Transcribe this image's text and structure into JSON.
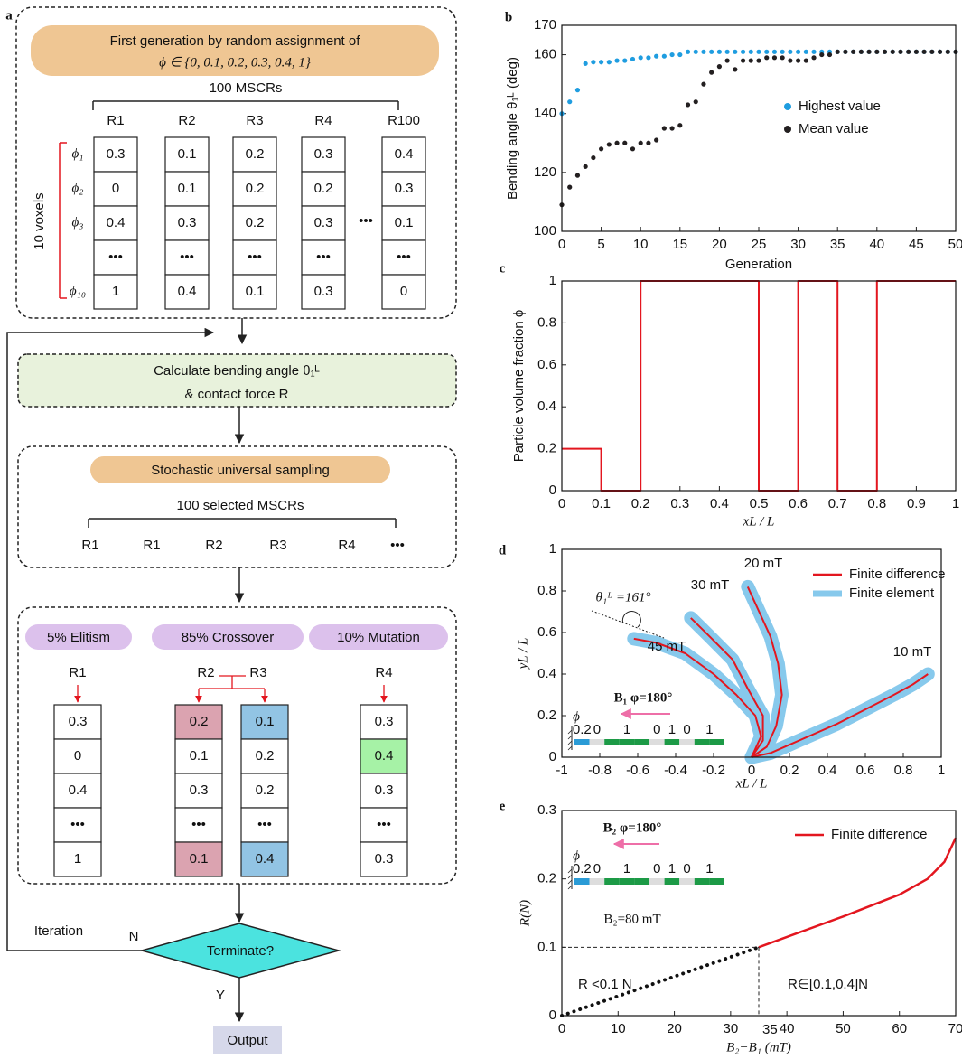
{
  "panel_labels": [
    "a",
    "b",
    "c",
    "d",
    "e"
  ],
  "flowchart": {
    "init": {
      "title": "First generation by random assignment of",
      "set": "ϕ ∈ {0, 0.1, 0.2, 0.3, 0.4, 1}",
      "group": "100 MSCRs",
      "columns": [
        "R1",
        "R2",
        "R3",
        "R4",
        "R100"
      ],
      "row_labels": [
        "ϕ₁",
        "ϕ₂",
        "ϕ₃",
        "ϕ₁₀"
      ],
      "rows_label": "10 voxels",
      "ellipsis": "•••",
      "cells": [
        [
          "0.3",
          "0",
          "0.4",
          "•••",
          "1"
        ],
        [
          "0.1",
          "0.1",
          "0.3",
          "•••",
          "0.4"
        ],
        [
          "0.2",
          "0.2",
          "0.2",
          "•••",
          "0.1"
        ],
        [
          "0.3",
          "0.2",
          "0.3",
          "•••",
          "0.3"
        ],
        [
          "0.4",
          "0.3",
          "0.1",
          "•••",
          "0"
        ]
      ]
    },
    "evaluate": {
      "line1": "Calculate  bending angle θ₁ᴸ",
      "line2": "& contact force R"
    },
    "selection": {
      "title": "Stochastic universal sampling",
      "group": "100  selected MSCRs",
      "items": [
        "R1",
        "R1",
        "R2",
        "R3",
        "R4",
        "•••"
      ]
    },
    "operators": {
      "labels": [
        "5% Elitism",
        "85% Crossover",
        "10% Mutation"
      ],
      "columns": [
        {
          "name": "R1",
          "cells": [
            "0.3",
            "0",
            "0.4",
            "•••",
            "1"
          ],
          "fills": [
            "#ffffff",
            "#ffffff",
            "#ffffff",
            "#ffffff",
            "#ffffff"
          ]
        },
        {
          "name": "R2",
          "cells": [
            "0.2",
            "0.1",
            "0.3",
            "•••",
            "0.1"
          ],
          "fills": [
            "#dba3b0",
            "#ffffff",
            "#ffffff",
            "#ffffff",
            "#dba3b0"
          ]
        },
        {
          "name": "R3",
          "cells": [
            "0.1",
            "0.2",
            "0.2",
            "•••",
            "0.4"
          ],
          "fills": [
            "#92c4e4",
            "#ffffff",
            "#ffffff",
            "#ffffff",
            "#92c4e4"
          ]
        },
        {
          "name": "R4",
          "cells": [
            "0.3",
            "0.4",
            "0.3",
            "•••",
            "0.3"
          ],
          "fills": [
            "#ffffff",
            "#a6f2a6",
            "#ffffff",
            "#ffffff",
            "#ffffff"
          ]
        }
      ]
    },
    "decision": "Terminate?",
    "loop": "Iteration",
    "no": "N",
    "yes": "Y",
    "output": "Output"
  },
  "chart_data": [
    {
      "type": "scatter",
      "ylabel": "Bending angle θ₁ᴸ (deg)",
      "xlabel": "Generation",
      "x": [
        0,
        1,
        2,
        3,
        4,
        5,
        6,
        7,
        8,
        9,
        10,
        11,
        12,
        13,
        14,
        15,
        16,
        17,
        18,
        19,
        20,
        21,
        22,
        23,
        24,
        25,
        26,
        27,
        28,
        29,
        30,
        31,
        32,
        33,
        34,
        35,
        36,
        37,
        38,
        39,
        40,
        41,
        42,
        43,
        44,
        45,
        46,
        47,
        48,
        49,
        50
      ],
      "xlim": [
        0,
        50
      ],
      "xticks": [
        0,
        5,
        10,
        15,
        20,
        25,
        30,
        35,
        40,
        45,
        50
      ],
      "ylim": [
        100,
        170
      ],
      "yticks": [
        100,
        120,
        140,
        160,
        170
      ],
      "series": [
        {
          "name": "Highest value",
          "color": "#1f9de0",
          "values": [
            140,
            144,
            148,
            157,
            157.5,
            157.5,
            157.5,
            158,
            158,
            158.5,
            159,
            159,
            159.5,
            159.5,
            160,
            160,
            161,
            161,
            161,
            161,
            161,
            161,
            161,
            161,
            161,
            161,
            161,
            161,
            161,
            161,
            161,
            161,
            161,
            161,
            161,
            161,
            161,
            161,
            161,
            161,
            161,
            161,
            161,
            161,
            161,
            161,
            161,
            161,
            161,
            161,
            161
          ]
        },
        {
          "name": "Mean value",
          "color": "#231f20",
          "values": [
            109,
            115,
            119,
            122,
            125,
            128,
            129.5,
            130,
            130,
            128,
            130,
            130,
            131,
            135,
            135,
            136,
            143,
            144,
            150,
            154,
            156,
            158,
            155,
            158,
            158,
            158,
            159,
            159,
            159,
            158,
            158,
            158,
            159,
            160,
            160,
            161,
            161,
            161,
            161,
            161,
            161,
            161,
            161,
            161,
            161,
            161,
            161,
            161,
            161,
            161,
            161
          ]
        }
      ]
    },
    {
      "type": "line",
      "ylabel": "Particle volume fraction ϕ",
      "xlabel": "xL / L",
      "xlim": [
        0,
        1
      ],
      "xticks": [
        0,
        0.1,
        0.2,
        0.3,
        0.4,
        0.5,
        0.6,
        0.7,
        0.8,
        0.9,
        1
      ],
      "ylim": [
        0,
        1
      ],
      "yticks": [
        0,
        0.2,
        0.4,
        0.6,
        0.8,
        1
      ],
      "x": [
        0,
        0.1,
        0.1,
        0.2,
        0.2,
        0.5,
        0.5,
        0.6,
        0.6,
        0.7,
        0.7,
        0.8,
        0.8,
        1
      ],
      "series": [
        {
          "color": "#e3161f",
          "values": [
            0.2,
            0.2,
            0,
            0,
            1,
            1,
            0,
            0,
            1,
            1,
            0,
            0,
            1,
            1
          ]
        }
      ]
    },
    {
      "type": "line",
      "ylabel": "yL / L",
      "xlabel": "xL / L",
      "xlim": [
        -1,
        1
      ],
      "xticks": [
        -1,
        -0.8,
        -0.6,
        -0.4,
        -0.2,
        0,
        0.2,
        0.4,
        0.6,
        0.8,
        1
      ],
      "ylim": [
        0,
        1
      ],
      "yticks": [
        0,
        0.2,
        0.4,
        0.6,
        0.8,
        1
      ],
      "series": [
        {
          "name": "Finite difference",
          "color": "#e3161f",
          "curves": [
            {
              "label": "10 mT",
              "x": [
                0,
                0.1,
                0.2,
                0.3,
                0.45,
                0.6,
                0.75,
                0.85,
                0.93
              ],
              "y": [
                0,
                0.02,
                0.06,
                0.1,
                0.16,
                0.23,
                0.3,
                0.35,
                0.4
              ]
            },
            {
              "label": "20 mT",
              "x": [
                0,
                0.08,
                0.13,
                0.16,
                0.14,
                0.1,
                0.04,
                -0.02
              ],
              "y": [
                0,
                0.05,
                0.15,
                0.3,
                0.45,
                0.58,
                0.7,
                0.82
              ]
            },
            {
              "label": "30 mT",
              "x": [
                0,
                0.06,
                0.06,
                -0.02,
                -0.1,
                -0.22,
                -0.32
              ],
              "y": [
                0,
                0.08,
                0.2,
                0.33,
                0.47,
                0.58,
                0.67
              ]
            },
            {
              "label": "45 mT",
              "x": [
                0,
                0.05,
                0.02,
                -0.08,
                -0.2,
                -0.35,
                -0.5,
                -0.62
              ],
              "y": [
                0,
                0.1,
                0.2,
                0.3,
                0.4,
                0.5,
                0.55,
                0.57
              ]
            }
          ]
        },
        {
          "name": "Finite element",
          "color": "#87c9ec",
          "curves": [
            {
              "x": [
                0,
                0.1,
                0.2,
                0.3,
                0.45,
                0.6,
                0.75,
                0.85,
                0.93
              ],
              "y": [
                0,
                0.02,
                0.06,
                0.1,
                0.16,
                0.23,
                0.3,
                0.35,
                0.4
              ]
            },
            {
              "x": [
                0,
                0.08,
                0.13,
                0.16,
                0.14,
                0.1,
                0.04,
                -0.02
              ],
              "y": [
                0,
                0.05,
                0.15,
                0.3,
                0.45,
                0.58,
                0.7,
                0.82
              ]
            },
            {
              "x": [
                0,
                0.06,
                0.06,
                -0.02,
                -0.1,
                -0.22,
                -0.32
              ],
              "y": [
                0,
                0.08,
                0.2,
                0.33,
                0.47,
                0.58,
                0.67
              ]
            },
            {
              "x": [
                0,
                0.05,
                0.02,
                -0.08,
                -0.2,
                -0.35,
                -0.5,
                -0.62
              ],
              "y": [
                0,
                0.1,
                0.2,
                0.3,
                0.4,
                0.5,
                0.55,
                0.57
              ]
            }
          ]
        }
      ],
      "annotations": {
        "angle_label": "θ₁ᴸ =161°",
        "field_label": "B₁  φ=180°",
        "inset": {
          "phi": "ϕ",
          "labels": [
            "0.2",
            "0",
            "1",
            "0",
            "1",
            "0",
            "1"
          ]
        }
      }
    },
    {
      "type": "line",
      "ylabel": "R(N)",
      "xlabel": "B₂−B₁ (mT)",
      "xlim": [
        0,
        70
      ],
      "xticks": [
        0,
        10,
        20,
        30,
        40,
        50,
        60,
        70
      ],
      "ylim": [
        0,
        0.3
      ],
      "yticks": [
        0,
        0.1,
        0.2,
        0.3
      ],
      "series": [
        {
          "color": "#111111",
          "x": [
            0,
            35
          ],
          "values": [
            0,
            0.1
          ]
        },
        {
          "name": "Finite difference",
          "color": "#e3161f",
          "x": [
            35,
            40,
            50,
            60,
            65,
            68,
            70
          ],
          "values": [
            0.1,
            0.115,
            0.145,
            0.177,
            0.2,
            0.225,
            0.26
          ]
        }
      ],
      "annotations": {
        "field_label": "B₂  φ=180°",
        "inset": {
          "phi": "ϕ",
          "labels": [
            "0.2",
            "0",
            "1",
            "0",
            "1",
            "0",
            "1"
          ]
        },
        "field_value": "B₂=80 mT",
        "below": "R <0.1 N",
        "above": "R∈[0.1,0.4]N",
        "threshold_x": 35
      }
    }
  ]
}
